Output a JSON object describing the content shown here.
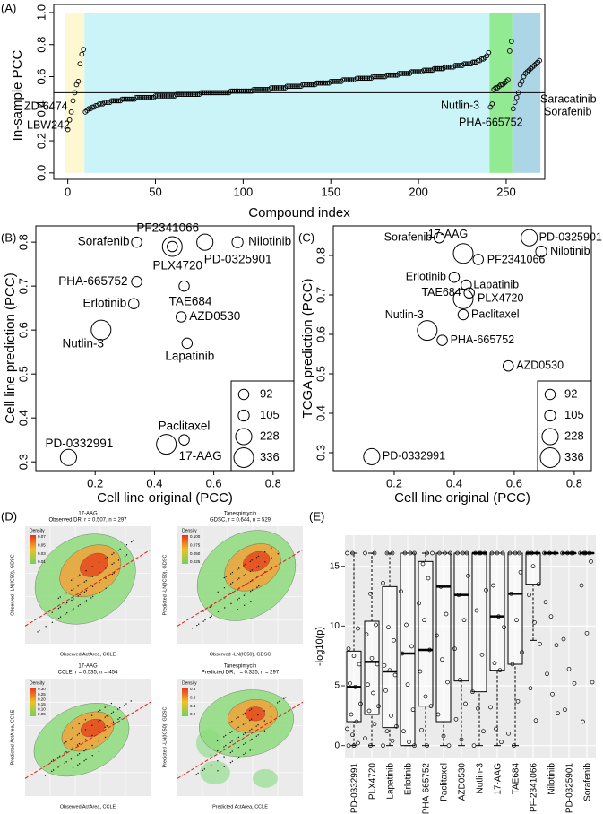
{
  "chart_data": [
    {
      "type": "scatter",
      "panel_label": "(A)",
      "xlabel": "Compound index",
      "ylabel": "In-sample PCC",
      "xlim": [
        -8,
        272
      ],
      "ylim": [
        -0.04,
        1.05
      ],
      "xticks": [
        0,
        50,
        100,
        150,
        200,
        250
      ],
      "yticks": [
        {
          "value": 0,
          "label": "0.0"
        },
        0.2,
        0.4,
        0.6,
        0.8,
        {
          "value": 1,
          "label": "1.0"
        }
      ],
      "reference_line": 0.5,
      "regions": [
        {
          "from": -1.5,
          "to": 9.5,
          "bottom": 0,
          "top": 1,
          "color": "#fdf7d2"
        },
        {
          "from": 9.5,
          "to": 240.5,
          "bottom": 0,
          "top": 1,
          "color": "#cbf4f8"
        },
        {
          "from": 240.5,
          "to": 253.5,
          "bottom": 0,
          "top": 1,
          "color": "#92ea92"
        },
        {
          "from": 253.5,
          "to": 269.5,
          "bottom": 0,
          "top": 1,
          "color": "#acd6e5"
        }
      ],
      "annotations": [
        "ZD-6474",
        "LBW242",
        "Nutlin-3",
        "PHA-665752",
        "Saracatinib",
        "Sorafenib"
      ],
      "values": [
        0.27,
        0.33,
        0.38,
        0.45,
        0.5,
        0.55,
        0.57,
        0.68,
        0.74,
        0.77,
        0.38,
        0.39,
        0.4,
        0.4,
        0.41,
        0.41,
        0.42,
        0.42,
        0.43,
        0.43,
        0.43,
        0.44,
        0.44,
        0.44,
        0.44,
        0.45,
        0.45,
        0.45,
        0.45,
        0.45,
        0.45,
        0.46,
        0.46,
        0.46,
        0.46,
        0.46,
        0.46,
        0.46,
        0.46,
        0.47,
        0.47,
        0.47,
        0.47,
        0.47,
        0.47,
        0.47,
        0.47,
        0.47,
        0.47,
        0.47,
        0.48,
        0.48,
        0.48,
        0.48,
        0.48,
        0.48,
        0.48,
        0.48,
        0.48,
        0.48,
        0.48,
        0.48,
        0.49,
        0.49,
        0.49,
        0.49,
        0.49,
        0.49,
        0.49,
        0.49,
        0.49,
        0.49,
        0.49,
        0.49,
        0.49,
        0.49,
        0.5,
        0.5,
        0.5,
        0.5,
        0.5,
        0.5,
        0.5,
        0.5,
        0.5,
        0.5,
        0.5,
        0.5,
        0.5,
        0.5,
        0.5,
        0.5,
        0.5,
        0.51,
        0.51,
        0.51,
        0.51,
        0.51,
        0.51,
        0.51,
        0.51,
        0.51,
        0.51,
        0.51,
        0.51,
        0.51,
        0.52,
        0.52,
        0.52,
        0.52,
        0.52,
        0.52,
        0.52,
        0.52,
        0.52,
        0.52,
        0.53,
        0.53,
        0.53,
        0.53,
        0.53,
        0.53,
        0.53,
        0.53,
        0.53,
        0.54,
        0.54,
        0.54,
        0.54,
        0.54,
        0.54,
        0.54,
        0.54,
        0.54,
        0.55,
        0.55,
        0.55,
        0.55,
        0.55,
        0.55,
        0.55,
        0.55,
        0.56,
        0.56,
        0.56,
        0.56,
        0.56,
        0.56,
        0.56,
        0.56,
        0.57,
        0.57,
        0.57,
        0.57,
        0.57,
        0.57,
        0.57,
        0.58,
        0.58,
        0.58,
        0.58,
        0.58,
        0.58,
        0.58,
        0.58,
        0.59,
        0.59,
        0.59,
        0.59,
        0.59,
        0.59,
        0.59,
        0.59,
        0.59,
        0.6,
        0.6,
        0.6,
        0.6,
        0.6,
        0.6,
        0.6,
        0.6,
        0.61,
        0.61,
        0.61,
        0.61,
        0.61,
        0.61,
        0.61,
        0.62,
        0.62,
        0.62,
        0.62,
        0.62,
        0.62,
        0.62,
        0.63,
        0.63,
        0.63,
        0.63,
        0.63,
        0.63,
        0.63,
        0.64,
        0.64,
        0.64,
        0.64,
        0.64,
        0.64,
        0.65,
        0.65,
        0.65,
        0.65,
        0.65,
        0.65,
        0.66,
        0.66,
        0.66,
        0.66,
        0.66,
        0.66,
        0.67,
        0.67,
        0.67,
        0.67,
        0.67,
        0.68,
        0.68,
        0.68,
        0.68,
        0.68,
        0.69,
        0.69,
        0.69,
        0.7,
        0.7,
        0.71,
        0.71,
        0.72,
        0.73,
        0.75,
        0.41,
        0.43,
        0.52,
        0.53,
        0.53,
        0.54,
        0.55,
        0.55,
        0.56,
        0.57,
        0.58,
        0.76,
        0.82,
        0.4,
        0.44,
        0.47,
        0.5,
        0.55,
        0.57,
        0.6,
        0.62,
        0.63,
        0.64,
        0.65,
        0.66,
        0.67,
        0.68,
        0.69,
        0.7
      ]
    },
    {
      "type": "bubble",
      "panel_label": "(B)",
      "xlabel": "Cell line original (PCC)",
      "ylabel": "Cell line prediction (PCC)",
      "xlim": [
        0,
        0.87
      ],
      "ylim": [
        0.28,
        0.837
      ],
      "xticks": [
        0.2,
        0.4,
        0.6,
        0.8
      ],
      "yticks": [
        0.3,
        0.4,
        0.5,
        0.6,
        0.7,
        0.8
      ],
      "legend_sizes": [
        92,
        105,
        228,
        336
      ],
      "categories": [
        "Sorafenib",
        "PF2341066",
        "PD-0325901",
        "Nilotinib",
        "PHA-665752",
        "PLX4720",
        "TAE684",
        "Erlotinib",
        "AZD0530",
        "Nutlin-3",
        "Lapatinib",
        "Paclitaxel",
        "17-AAG",
        "PD-0332991"
      ],
      "x": [
        0.34,
        0.46,
        0.57,
        0.68,
        0.34,
        0.46,
        0.5,
        0.33,
        0.49,
        0.22,
        0.51,
        0.5,
        0.44,
        0.11
      ],
      "values": [
        0.8,
        0.79,
        0.8,
        0.8,
        0.71,
        0.79,
        0.7,
        0.66,
        0.63,
        0.6,
        0.57,
        0.35,
        0.34,
        0.31
      ],
      "sizes": [
        92,
        92,
        228,
        105,
        92,
        336,
        92,
        92,
        92,
        336,
        92,
        92,
        336,
        228
      ]
    },
    {
      "type": "bubble",
      "panel_label": "(C)",
      "xlabel": "Cell line original (PCC)",
      "ylabel": "TCGA prediction (PCC)",
      "xlim": [
        -0.003,
        0.857
      ],
      "ylim": [
        0.2545,
        0.875
      ],
      "xticks": [
        0.2,
        0.4,
        0.6,
        0.8
      ],
      "yticks": [
        0.3,
        0.4,
        0.5,
        0.6,
        0.7,
        0.8
      ],
      "legend_sizes": [
        92,
        105,
        228,
        336
      ],
      "categories": [
        "Sorafenib",
        "PD-0325901",
        "17-AAG",
        "PF2341066",
        "Nilotinib",
        "Erlotinib",
        "Lapatinib",
        "TAE684",
        "PLX4720",
        "Paclitaxel",
        "Nutlin-3",
        "PHA-665752",
        "AZD0530",
        "PD-0332991"
      ],
      "x": [
        0.35,
        0.65,
        0.43,
        0.48,
        0.69,
        0.4,
        0.44,
        0.45,
        0.43,
        0.43,
        0.31,
        0.36,
        0.58,
        0.125
      ],
      "values": [
        0.845,
        0.845,
        0.805,
        0.79,
        0.81,
        0.745,
        0.725,
        0.705,
        0.69,
        0.65,
        0.61,
        0.585,
        0.52,
        0.29
      ],
      "sizes": [
        92,
        228,
        336,
        92,
        105,
        92,
        92,
        92,
        336,
        92,
        336,
        92,
        92,
        228
      ]
    },
    {
      "type": "density",
      "panel_label": "(D)",
      "panels": [
        {
          "title": "17-AAG",
          "subtitle": "Observed DR, r = 0.507, n = 297",
          "xlabel": "Observed ActArea, CCLE",
          "ylabel": "Observed -LN(IC50), GDSC",
          "legend_title": "Density",
          "legend_labels": [
            "0.07",
            "0.05",
            "0.03",
            "0.01"
          ]
        },
        {
          "title": "Tanespimycin",
          "subtitle": "GDSC, r = 0.644, n = 529",
          "xlabel": "Observed -LN(IC50), GDSC",
          "ylabel": "Predicted -LN(IC50), GDSC",
          "legend_title": "Density",
          "legend_labels": [
            "0.100",
            "0.075",
            "0.050",
            "0.025"
          ]
        },
        {
          "title": "17-AAG",
          "subtitle": "CCLE, r = 0.535, n = 454",
          "xlabel": "Observed ActArea, CCLE",
          "ylabel": "Predicted ActArea, CCLE",
          "legend_title": "Density",
          "legend_labels": [
            "0.30",
            "0.25",
            "0.20",
            "0.15",
            "0.10",
            "0.05"
          ]
        },
        {
          "title": "Tanespimycin",
          "subtitle": "Predicted DR, r = 0.325, n = 297",
          "xlabel": "Predicted ActArea, CCLE",
          "ylabel": "Predicted -LN(IC50), GDSC",
          "legend_title": "Density",
          "legend_labels": [
            "0.8",
            "0.6",
            "0.4",
            "0.2"
          ]
        }
      ]
    },
    {
      "type": "box",
      "panel_label": "(E)",
      "ylabel": "-log10(p)",
      "ylim": [
        -1,
        17.6
      ],
      "yticks": [
        0,
        5,
        10,
        15
      ],
      "categories": [
        "PD-0332991",
        "PLX4720",
        "Lapatinib",
        "Erlotinib",
        "PHA-665752",
        "Paclitaxel",
        "AZD0530",
        "Nutlin-3",
        "17-AAG",
        "TAE684",
        "PF-2341066",
        "Nilotinib",
        "PD-0325901",
        "Sorafenib"
      ],
      "boxes": [
        {
          "lo": 0,
          "q1": 2.0,
          "median": 4.9,
          "q3": 7.9,
          "hi": 16.1
        },
        {
          "lo": 0,
          "q1": 2.6,
          "median": 7.0,
          "q3": 10.4,
          "hi": 16.1
        },
        {
          "lo": 0,
          "q1": 1.5,
          "median": 6.2,
          "q3": 13.3,
          "hi": 16.1
        },
        {
          "lo": 0,
          "q1": 0,
          "median": 7.7,
          "q3": 16.1,
          "hi": 16.1
        },
        {
          "lo": 0,
          "q1": 3.3,
          "median": 8.0,
          "q3": 15.4,
          "hi": 16.1
        },
        {
          "lo": 0,
          "q1": 2.0,
          "median": 13.3,
          "q3": 16.1,
          "hi": 16.1
        },
        {
          "lo": 0,
          "q1": 5.4,
          "median": 12.6,
          "q3": 16.1,
          "hi": 16.1
        },
        {
          "lo": 0,
          "q1": 4.5,
          "median": 16.1,
          "q3": 16.1,
          "hi": 16.1
        },
        {
          "lo": 0,
          "q1": 6.3,
          "median": 10.8,
          "q3": 16.1,
          "hi": 16.1
        },
        {
          "lo": 0,
          "q1": 6.8,
          "median": 12.7,
          "q3": 16.1,
          "hi": 16.1
        },
        {
          "lo": 8.8,
          "q1": 13.5,
          "median": 16.1,
          "q3": 16.1,
          "hi": 16.1
        },
        {
          "lo": 16.1,
          "q1": 16.1,
          "median": 16.1,
          "q3": 16.1,
          "hi": 16.1
        },
        {
          "lo": 16.1,
          "q1": 16.1,
          "median": 16.1,
          "q3": 16.1,
          "hi": 16.1
        },
        {
          "lo": 16.1,
          "q1": 16.1,
          "median": 16.1,
          "q3": 16.1,
          "hi": 16.1
        }
      ],
      "points": [
        [
          16.1,
          16.1,
          9.8,
          8.1,
          7.5,
          6.8,
          5.2,
          4.9,
          3.5,
          2.6,
          2.0,
          1.4,
          0.9,
          0.2,
          0,
          0
        ],
        [
          16.1,
          16.1,
          12.7,
          10.1,
          9.3,
          7.3,
          6.8,
          5.1,
          4.4,
          3.3,
          2.9,
          1.8,
          0.6,
          0
        ],
        [
          16.1,
          16.1,
          13.6,
          9.9,
          8.8,
          6.7,
          6.3,
          5.9,
          4.6,
          2.5,
          1.6,
          1.2,
          0.4,
          0
        ],
        [
          16.1,
          16.1,
          16.1,
          12.9,
          10.1,
          8.3,
          7.7,
          5.1,
          3.0,
          1.2,
          0.3,
          0
        ],
        [
          16.1,
          16.1,
          15.2,
          14.0,
          11.9,
          10.5,
          8.0,
          6.2,
          4.1,
          3.3,
          1.3,
          0
        ],
        [
          16.1,
          16.1,
          16.1,
          13.3,
          11.0,
          9.2,
          7.2,
          5.3,
          2.6,
          0.8,
          0
        ],
        [
          16.1,
          16.1,
          16.1,
          14.2,
          12.6,
          10.5,
          8.1,
          5.5,
          3.5,
          2.2,
          0.5
        ],
        [
          16.1,
          16.1,
          16.1,
          16.1,
          13.0,
          11.3,
          7.6,
          4.5,
          3.1,
          1.2,
          0
        ],
        [
          16.1,
          16.1,
          16.1,
          13.4,
          10.8,
          9.9,
          6.9,
          6.3,
          3.2,
          1.4,
          0.3
        ],
        [
          16.1,
          16.1,
          16.1,
          14.5,
          12.7,
          10.5,
          7.8,
          6.8,
          3.7,
          1.0,
          0
        ],
        [
          16.1,
          16.1,
          16.1,
          15.0,
          13.5,
          12.6,
          10.3,
          8.5,
          4.8,
          2.1
        ],
        [
          16.1,
          16.1,
          16.1,
          12.0,
          10.8,
          8.4,
          6.0,
          4.3,
          2.7
        ],
        [
          16.1,
          16.1,
          16.1,
          16.1,
          8.9,
          6.4,
          5.2,
          3.0
        ],
        [
          16.1,
          16.1,
          16.1,
          16.1,
          15.4,
          13.4,
          9.4,
          5.3,
          2.0
        ]
      ]
    }
  ]
}
